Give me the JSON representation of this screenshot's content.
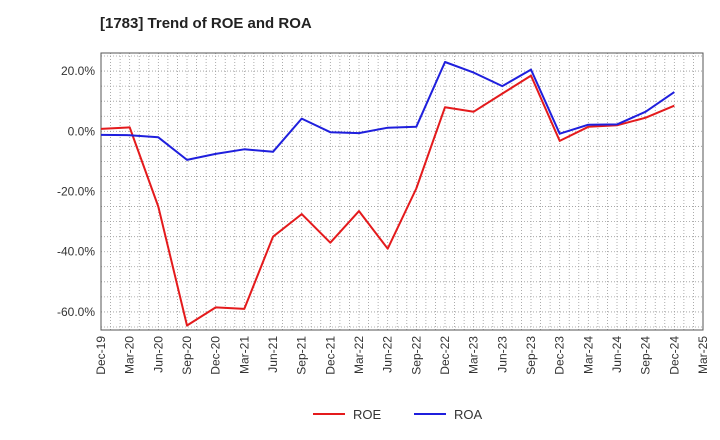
{
  "chart_data": {
    "type": "line",
    "title": "[1783]  Trend of ROE and ROA",
    "xlabel": "",
    "ylabel": "",
    "x_ticks": [
      "Dec-19",
      "Mar-20",
      "Jun-20",
      "Sep-20",
      "Dec-20",
      "Mar-21",
      "Jun-21",
      "Sep-21",
      "Dec-21",
      "Mar-22",
      "Jun-22",
      "Sep-22",
      "Dec-22",
      "Mar-23",
      "Jun-23",
      "Sep-23",
      "Dec-23",
      "Mar-24",
      "Jun-24",
      "Sep-24",
      "Dec-24",
      "Mar-25"
    ],
    "y_ticks": [
      20,
      0,
      -20,
      -40,
      -60
    ],
    "ylim": [
      -66,
      26
    ],
    "y_unit_suffix": "%",
    "grid": true,
    "legend_position": "bottom",
    "series": [
      {
        "name": "ROE",
        "color": "#e41a1c",
        "points": [
          [
            "Dec-19",
            0.8
          ],
          [
            "Mar-20",
            1.3
          ],
          [
            "Jun-20",
            -25.0
          ],
          [
            "Sep-20",
            -64.5
          ],
          [
            "Dec-20",
            -58.5
          ],
          [
            "Mar-21",
            -59.0
          ],
          [
            "Jun-21",
            -35.0
          ],
          [
            "Sep-21",
            -27.5
          ],
          [
            "Dec-21",
            -37.0
          ],
          [
            "Mar-22",
            -26.5
          ],
          [
            "Jun-22",
            -39.0
          ],
          [
            "Sep-22",
            -19.0
          ],
          [
            "Dec-22",
            8.0
          ],
          [
            "Mar-23",
            6.5
          ],
          [
            "Jun-23",
            12.5
          ],
          [
            "Sep-23",
            18.5
          ],
          [
            "Dec-23",
            -3.2
          ],
          [
            "Mar-24",
            1.5
          ],
          [
            "Jun-24",
            2.0
          ],
          [
            "Sep-24",
            4.5
          ],
          [
            "Dec-24",
            8.5
          ]
        ]
      },
      {
        "name": "ROA",
        "color": "#1f1fdd",
        "points": [
          [
            "Dec-19",
            -1.2
          ],
          [
            "Mar-20",
            -1.3
          ],
          [
            "Jun-20",
            -2.0
          ],
          [
            "Sep-20",
            -9.5
          ],
          [
            "Dec-20",
            -7.5
          ],
          [
            "Mar-21",
            -6.0
          ],
          [
            "Jun-21",
            -6.8
          ],
          [
            "Sep-21",
            4.2
          ],
          [
            "Dec-21",
            -0.3
          ],
          [
            "Mar-22",
            -0.6
          ],
          [
            "Jun-22",
            1.2
          ],
          [
            "Sep-22",
            1.5
          ],
          [
            "Dec-22",
            23.0
          ],
          [
            "Mar-23",
            19.5
          ],
          [
            "Jun-23",
            15.0
          ],
          [
            "Sep-23",
            20.5
          ],
          [
            "Dec-23",
            -0.8
          ],
          [
            "Mar-24",
            2.2
          ],
          [
            "Jun-24",
            2.3
          ],
          [
            "Sep-24",
            6.5
          ],
          [
            "Dec-24",
            13.0
          ]
        ]
      }
    ]
  }
}
